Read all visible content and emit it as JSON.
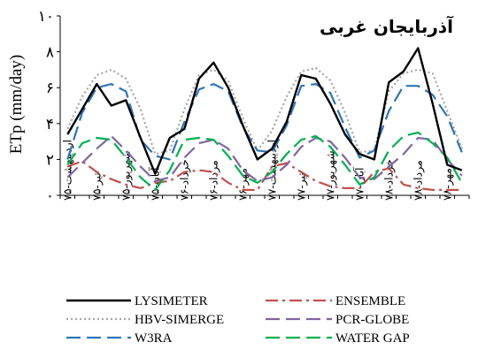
{
  "chart_data": {
    "type": "line",
    "title": "آذربایجان غربی",
    "ylabel": "ETp (mm/day)",
    "xlabel": "",
    "ylim": [
      0,
      10
    ],
    "yticks": [
      {
        "value": 0,
        "label": "۰"
      },
      {
        "value": 2,
        "label": "۲"
      },
      {
        "value": 4,
        "label": "۴"
      },
      {
        "value": 6,
        "label": "۶"
      },
      {
        "value": 8,
        "label": "۸"
      },
      {
        "value": 10,
        "label": "۱۰"
      }
    ],
    "categories": [
      "اردیبهشت-۷۵",
      "تیر-۷۵",
      "شهریور-۷۵",
      "آبان-۷۵",
      "خرداد-۷۶",
      "مرداد-۷۶",
      "مهر-۷۶",
      "اردیبهشت-۷۷",
      "تیر-۷۷",
      "شهریور-۷۷",
      "آبان-۷۷",
      "خرداد-۷۸",
      "مرداد-۷۸",
      "مهر-۷۸"
    ],
    "x": [
      1,
      2,
      3,
      4,
      5,
      6,
      7,
      8,
      9,
      10,
      11,
      12,
      13,
      14,
      15,
      16,
      17,
      18,
      19,
      20,
      21,
      22,
      23,
      24,
      25,
      26,
      27,
      28
    ],
    "category_x": [
      1,
      3,
      5,
      7,
      9,
      11,
      13,
      15,
      17,
      19,
      21,
      23,
      25,
      27
    ],
    "series": [
      {
        "name": "LYSIMETER",
        "color": "#000000",
        "dash": "solid",
        "values": [
          3.4,
          4.8,
          6.2,
          5.0,
          5.3,
          3.2,
          1.2,
          3.2,
          3.7,
          6.5,
          7.4,
          6.0,
          3.9,
          2.0,
          2.6,
          4.1,
          6.7,
          6.5,
          5.1,
          3.4,
          2.3,
          2.0,
          6.3,
          6.9,
          8.2,
          5.1,
          1.7,
          1.4
        ]
      },
      {
        "name": "ENSEMBLE",
        "color": "#C0504D",
        "dash": "dashdot",
        "values": [
          1.6,
          1.9,
          1.3,
          0.9,
          0.6,
          0.4,
          0.7,
          0.8,
          1.3,
          1.4,
          1.3,
          0.7,
          0.3,
          0.3,
          1.6,
          1.8,
          1.3,
          0.8,
          0.5,
          0.4,
          0.4,
          1.3,
          1.5,
          0.6,
          0.4,
          0.3,
          0.3,
          0.3
        ]
      },
      {
        "name": "HBV-SIMERGE",
        "color": "#A6A6A6",
        "dash": "dot",
        "values": [
          3.7,
          5.5,
          6.7,
          7.0,
          6.5,
          4.8,
          2.3,
          2.5,
          4.8,
          6.7,
          7.0,
          6.4,
          4.3,
          2.5,
          3.6,
          5.5,
          6.9,
          7.1,
          6.4,
          4.6,
          2.4,
          2.5,
          5.8,
          6.8,
          7.0,
          6.8,
          4.7,
          2.6
        ]
      },
      {
        "name": "PCR-GLOBE",
        "color": "#8064A2",
        "dash": "longdash",
        "values": [
          1.0,
          1.8,
          2.6,
          3.3,
          2.5,
          1.6,
          0.8,
          1.0,
          2.1,
          2.9,
          3.1,
          2.6,
          1.4,
          0.8,
          1.0,
          1.7,
          2.7,
          3.2,
          3.0,
          2.1,
          1.0,
          0.9,
          1.6,
          2.3,
          3.2,
          3.1,
          2.0,
          1.1
        ]
      },
      {
        "name": "W3RA",
        "color": "#2E75B6",
        "dash": "longdash",
        "values": [
          2.0,
          4.6,
          6.0,
          6.2,
          5.8,
          3.1,
          2.2,
          2.0,
          4.1,
          5.9,
          6.2,
          5.8,
          3.8,
          2.5,
          2.4,
          3.9,
          6.1,
          6.2,
          5.7,
          3.8,
          2.1,
          2.5,
          4.7,
          6.1,
          6.1,
          5.6,
          4.4,
          2.4
        ]
      },
      {
        "name": "WATER GAP",
        "color": "#00B050",
        "dash": "longdash",
        "values": [
          1.7,
          2.9,
          3.2,
          3.1,
          2.1,
          1.0,
          0.3,
          1.4,
          3.1,
          3.2,
          3.1,
          2.2,
          1.1,
          0.7,
          1.3,
          2.3,
          3.1,
          3.3,
          2.7,
          1.7,
          0.6,
          1.0,
          2.5,
          3.3,
          3.5,
          2.9,
          2.1,
          0.7
        ]
      }
    ],
    "grid": false,
    "legend": "bottom"
  }
}
